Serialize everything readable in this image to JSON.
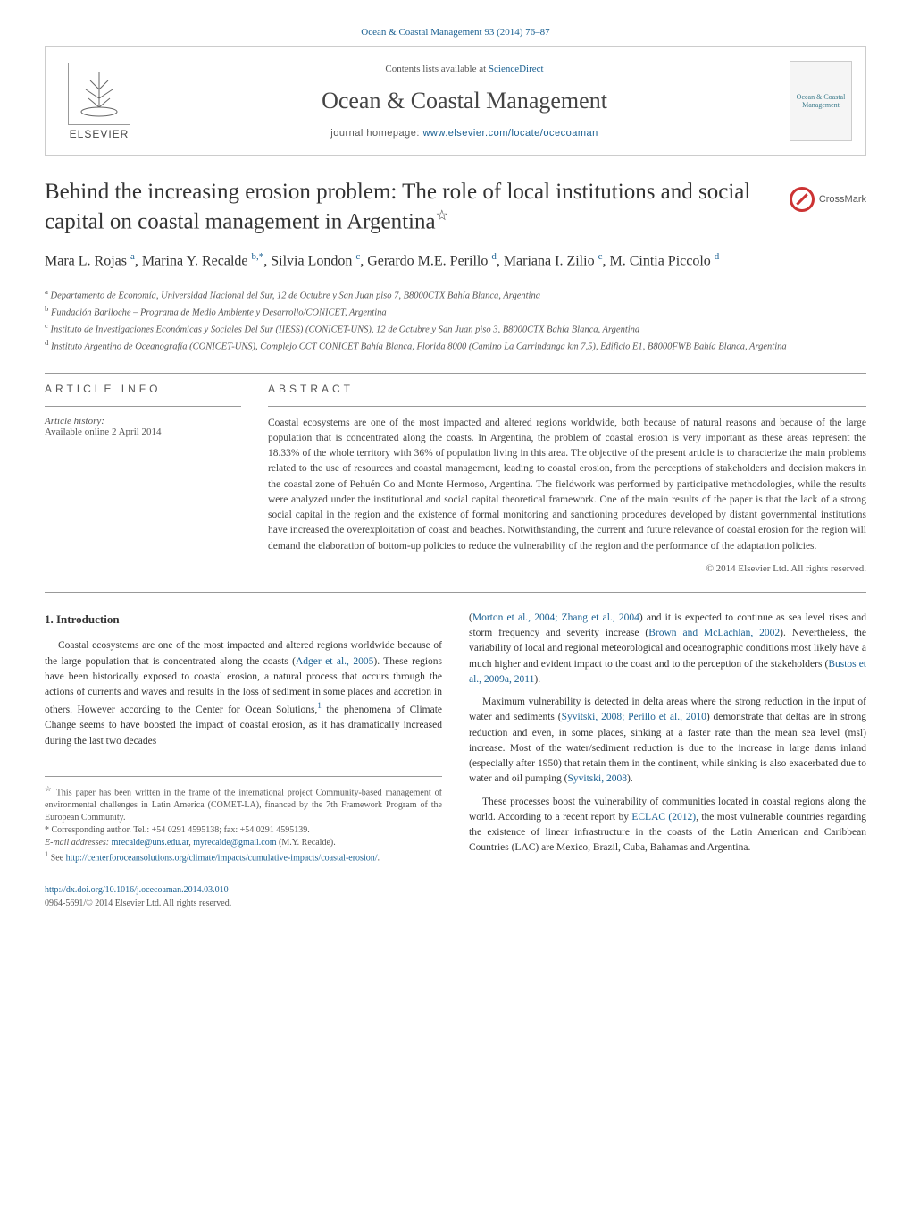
{
  "journal_ref": {
    "text": "Ocean & Coastal Management 93 (2014) 76–87",
    "link_color": "#1a6091"
  },
  "banner": {
    "publisher_name": "ELSEVIER",
    "contents_text": "Contents lists available at ",
    "contents_link": "ScienceDirect",
    "journal_title": "Ocean & Coastal Management",
    "homepage_text": "journal homepage: ",
    "homepage_link": "www.elsevier.com/locate/ocecoaman",
    "logo_text": "Ocean & Coastal Management"
  },
  "crossmark_label": "CrossMark",
  "title": "Behind the increasing erosion problem: The role of local institutions and social capital on coastal management in Argentina",
  "title_star": "☆",
  "authors_html": "Mara L. Rojas <sup>a</sup>, Marina Y. Recalde <sup>b,*</sup>, Silvia London <sup>c</sup>, Gerardo M.E. Perillo <sup>d</sup>, Mariana I. Zilio <sup>c</sup>, M. Cintia Piccolo <sup>d</sup>",
  "affiliations": [
    {
      "sup": "a",
      "text": "Departamento de Economía, Universidad Nacional del Sur, 12 de Octubre y San Juan piso 7, B8000CTX Bahía Blanca, Argentina"
    },
    {
      "sup": "b",
      "text": "Fundación Bariloche – Programa de Medio Ambiente y Desarrollo/CONICET, Argentina"
    },
    {
      "sup": "c",
      "text": "Instituto de Investigaciones Económicas y Sociales Del Sur (IIESS) (CONICET-UNS), 12 de Octubre y San Juan piso 3, B8000CTX Bahía Blanca, Argentina"
    },
    {
      "sup": "d",
      "text": "Instituto Argentino de Oceanografía (CONICET-UNS), Complejo CCT CONICET Bahía Blanca, Florida 8000 (Camino La Carrindanga km 7,5), Edificio E1, B8000FWB Bahía Blanca, Argentina"
    }
  ],
  "article_info": {
    "heading": "ARTICLE INFO",
    "history_label": "Article history:",
    "history_value": "Available online 2 April 2014"
  },
  "abstract": {
    "heading": "ABSTRACT",
    "text": "Coastal ecosystems are one of the most impacted and altered regions worldwide, both because of natural reasons and because of the large population that is concentrated along the coasts. In Argentina, the problem of coastal erosion is very important as these areas represent the 18.33% of the whole territory with 36% of population living in this area. The objective of the present article is to characterize the main problems related to the use of resources and coastal management, leading to coastal erosion, from the perceptions of stakeholders and decision makers in the coastal zone of Pehuén Co and Monte Hermoso, Argentina. The fieldwork was performed by participative methodologies, while the results were analyzed under the institutional and social capital theoretical framework. One of the main results of the paper is that the lack of a strong social capital in the region and the existence of formal monitoring and sanctioning procedures developed by distant governmental institutions have increased the overexploitation of coast and beaches. Notwithstanding, the current and future relevance of coastal erosion for the region will demand the elaboration of bottom-up policies to reduce the vulnerability of the region and the performance of the adaptation policies.",
    "copyright": "© 2014 Elsevier Ltd. All rights reserved."
  },
  "intro": {
    "heading": "1. Introduction",
    "col1_p1": "Coastal ecosystems are one of the most impacted and altered regions worldwide because of the large population that is concentrated along the coasts (",
    "col1_p1_cite": "Adger et al., 2005",
    "col1_p1_cont": "). These regions have been historically exposed to coastal erosion, a natural process that occurs through the actions of currents and waves and results in the loss of sediment in some places and accretion in others. However according to the Center for Ocean Solutions,",
    "col1_p1_fn": "1",
    "col1_p1_end": " the phenomena of Climate Change seems to have boosted the impact of coastal erosion, as it has dramatically increased during the last two decades",
    "col2_p1_start": "(",
    "col2_p1_cite1": "Morton et al., 2004; Zhang et al., 2004",
    "col2_p1_mid": ") and it is expected to continue as sea level rises and storm frequency and severity increase (",
    "col2_p1_cite2": "Brown and McLachlan, 2002",
    "col2_p1_mid2": "). Nevertheless, the variability of local and regional meteorological and oceanographic conditions most likely have a much higher and evident impact to the coast and to the perception of the stakeholders (",
    "col2_p1_cite3": "Bustos et al., 2009a, 2011",
    "col2_p1_end": ").",
    "col2_p2_start": "Maximum vulnerability is detected in delta areas where the strong reduction in the input of water and sediments (",
    "col2_p2_cite1": "Syvitski, 2008; Perillo et al., 2010",
    "col2_p2_mid": ") demonstrate that deltas are in strong reduction and even, in some places, sinking at a faster rate than the mean sea level (msl) increase. Most of the water/sediment reduction is due to the increase in large dams inland (especially after 1950) that retain them in the continent, while sinking is also exacerbated due to water and oil pumping (",
    "col2_p2_cite2": "Syvitski, 2008",
    "col2_p2_end": ").",
    "col2_p3_start": "These processes boost the vulnerability of communities located in coastal regions along the world. According to a recent report by ",
    "col2_p3_cite1": "ECLAC (2012)",
    "col2_p3_end": ", the most vulnerable countries regarding the existence of linear infrastructure in the coasts of the Latin American and Caribbean Countries (LAC) are Mexico, Brazil, Cuba, Bahamas and Argentina."
  },
  "footnotes": {
    "star_text": "This paper has been written in the frame of the international project Community-based management of environmental challenges in Latin America (COMET-LA), financed by the 7th Framework Program of the European Community.",
    "corr_label": "* Corresponding author. Tel.: +54 0291 4595138; fax: +54 0291 4595139.",
    "email_label": "E-mail addresses: ",
    "email1": "mrecalde@uns.edu.ar",
    "email_sep": ", ",
    "email2": "myrecalde@gmail.com",
    "email_tail": " (M.Y. Recalde).",
    "fn1_label": "1",
    "fn1_text": "See ",
    "fn1_link": "http://centerforoceansolutions.org/climate/impacts/cumulative-impacts/coastal-erosion/",
    "fn1_end": "."
  },
  "footer": {
    "doi": "http://dx.doi.org/10.1016/j.ocecoaman.2014.03.010",
    "issn_copyright": "0964-5691/© 2014 Elsevier Ltd. All rights reserved."
  },
  "colors": {
    "link": "#1a6091",
    "text": "#333333",
    "muted": "#555555",
    "crossmark": "#cc3333",
    "background": "#ffffff"
  },
  "typography": {
    "body_font": "Georgia, 'Times New Roman', serif",
    "title_size_pt": 25,
    "journal_title_size_pt": 26,
    "body_size_pt": 11.5,
    "abstract_size_pt": 11.5,
    "footnote_size_pt": 10
  }
}
